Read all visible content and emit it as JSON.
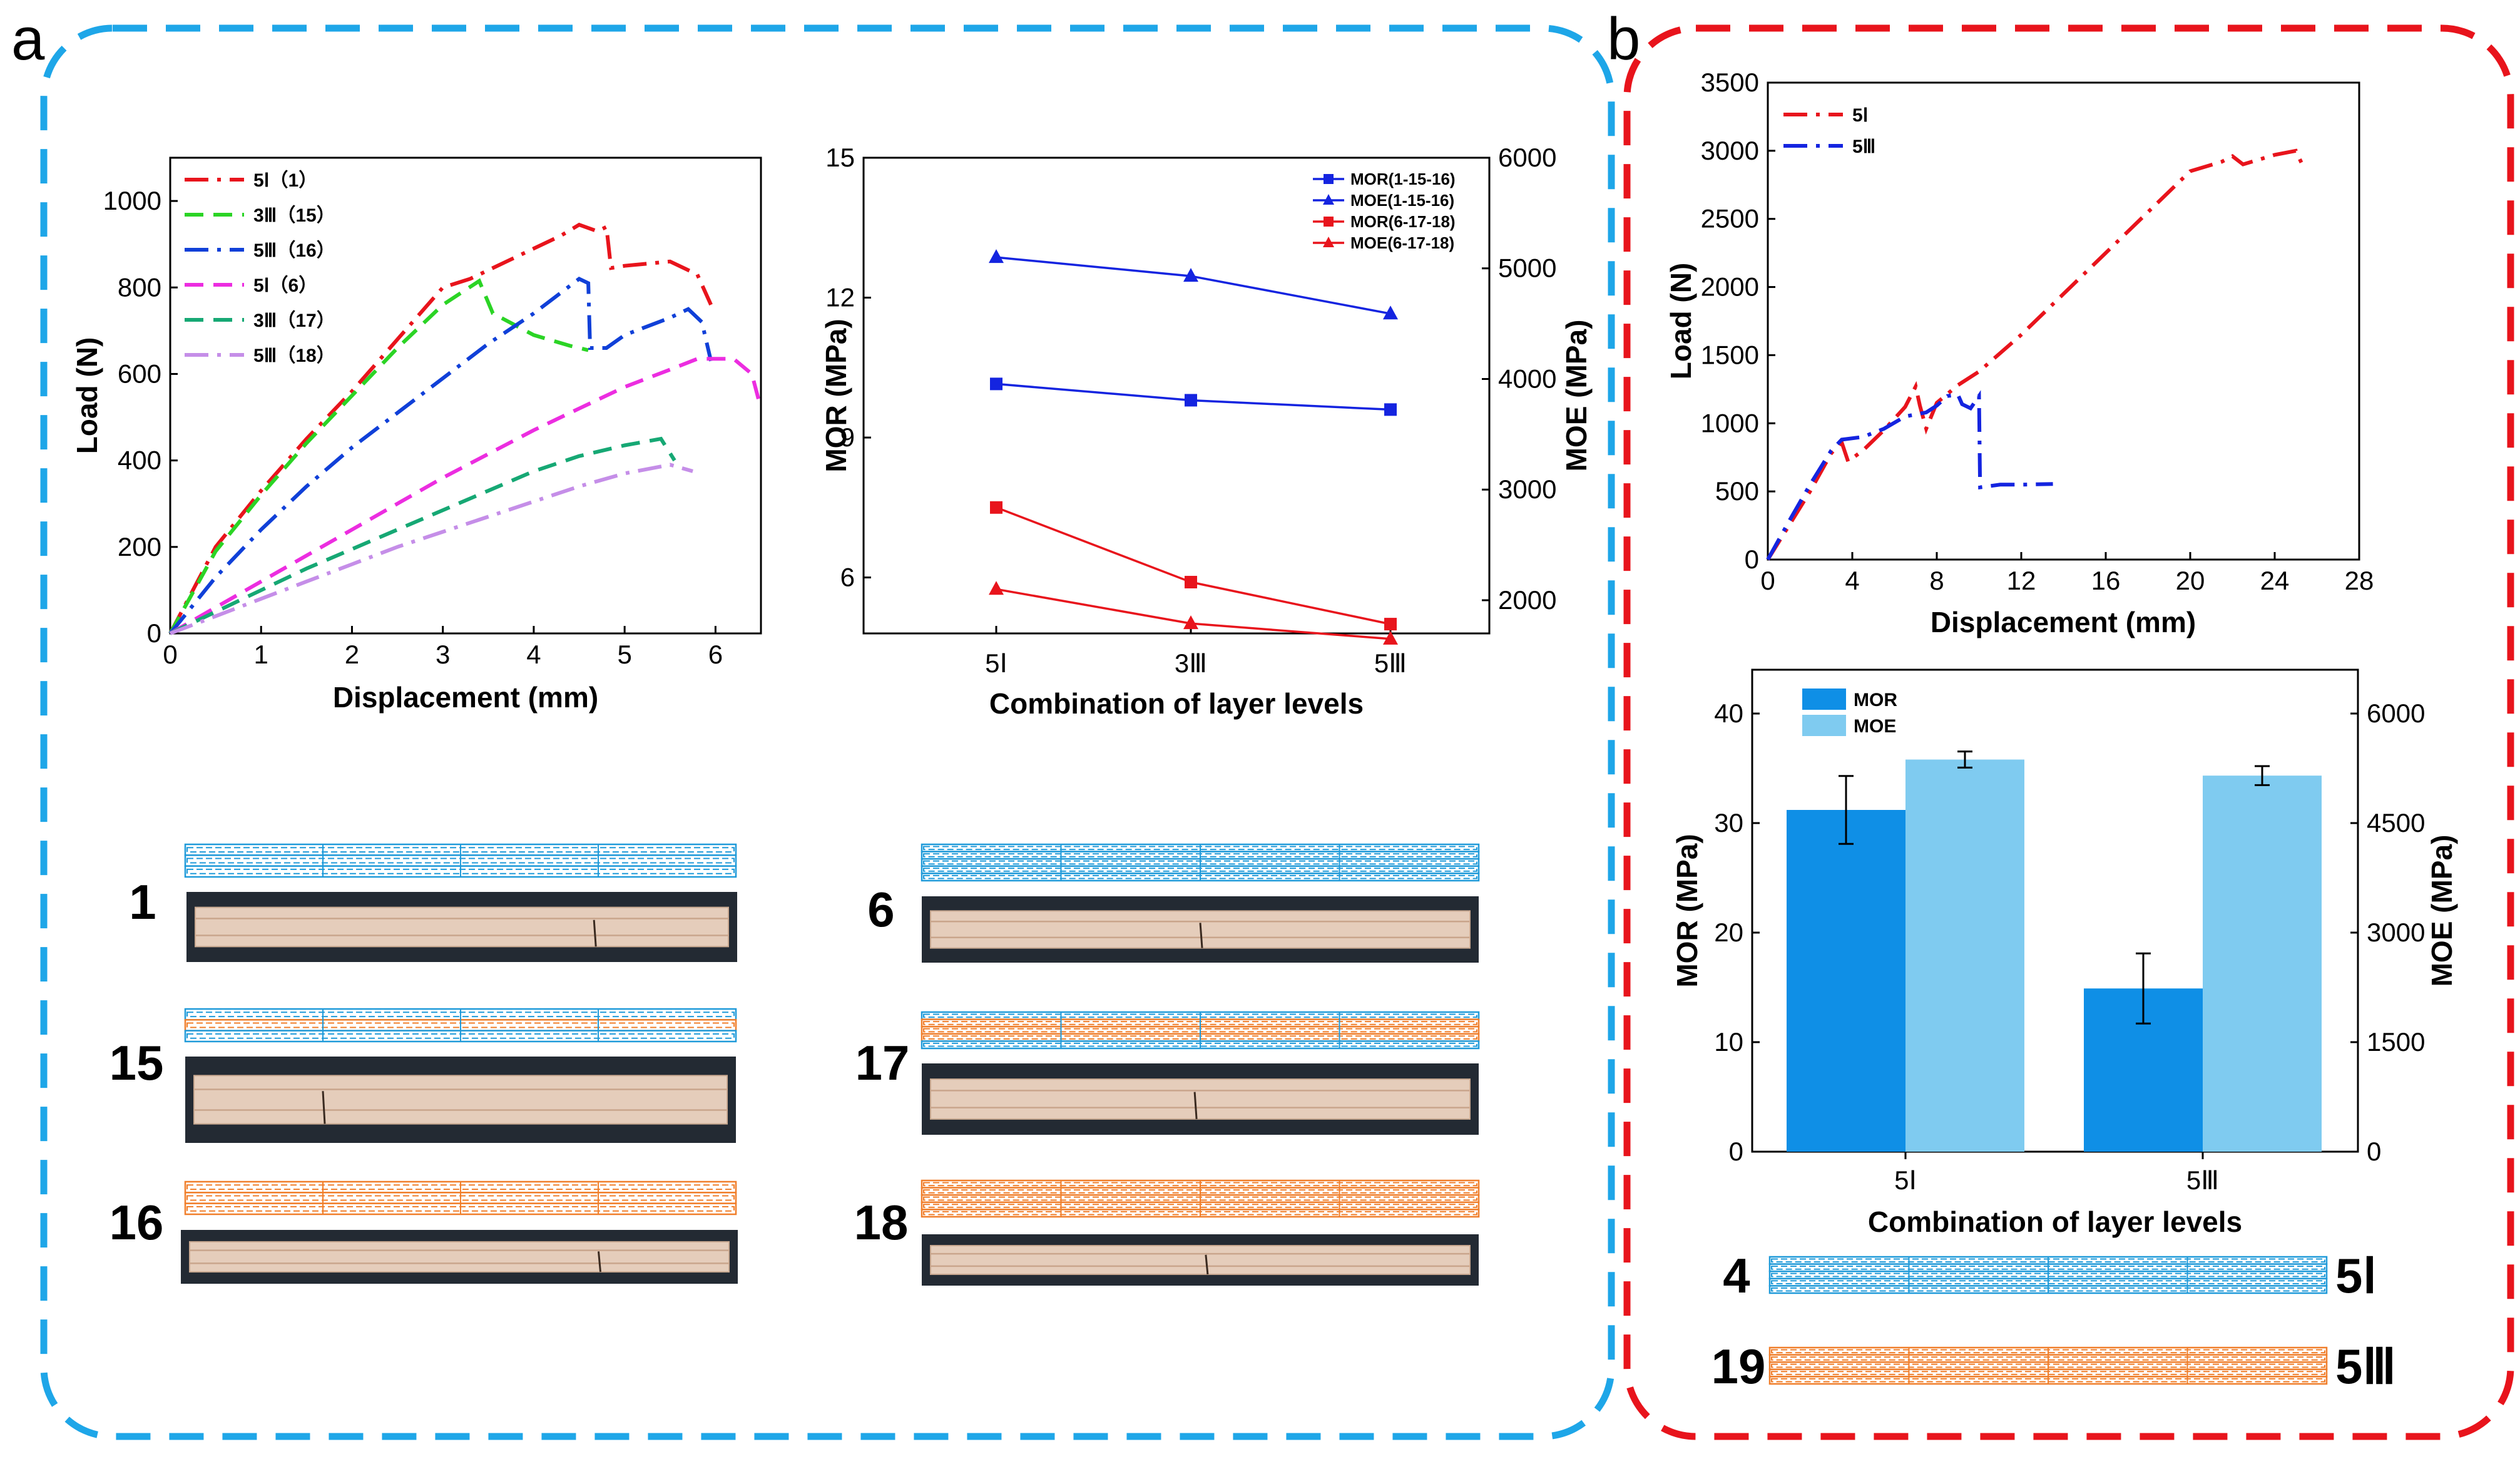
{
  "panel_a": {
    "label": "a",
    "specimens": [
      {
        "num": "1",
        "color": "#1f9ad9"
      },
      {
        "num": "15",
        "color": "mixed"
      },
      {
        "num": "16",
        "color": "#f07e2a"
      },
      {
        "num": "6",
        "color": "#1f9ad9"
      },
      {
        "num": "17",
        "color": "mixed"
      },
      {
        "num": "18",
        "color": "#f07e2a"
      }
    ]
  },
  "panel_b": {
    "label": "b",
    "specimens": [
      {
        "num": "4",
        "label": "5Ⅰ",
        "color": "#1f9ad9"
      },
      {
        "num": "19",
        "label": "5Ⅲ",
        "color": "#f07e2a"
      }
    ]
  },
  "colors": {
    "border_a": "#1ea6e8",
    "border_b": "#e8141c",
    "blue_layer": "#1f9ad9",
    "orange_layer": "#f07e2a"
  },
  "chart_data": [
    {
      "id": "load-a",
      "type": "line",
      "xlabel": "Displacement (mm)",
      "ylabel": "Load (N)",
      "xlim": [
        0,
        6.5
      ],
      "ylim": [
        0,
        1100
      ],
      "xticks": [
        0,
        1,
        2,
        3,
        4,
        5,
        6
      ],
      "yticks": [
        0,
        200,
        400,
        600,
        800,
        1000
      ],
      "series": [
        {
          "name": "5Ⅰ（1）",
          "color": "#e8141c",
          "dash": "dashdot",
          "points": [
            [
              0,
              0
            ],
            [
              0.5,
              200
            ],
            [
              1,
              330
            ],
            [
              1.5,
              450
            ],
            [
              2,
              560
            ],
            [
              2.5,
              680
            ],
            [
              3,
              800
            ],
            [
              3.3,
              820
            ],
            [
              3.7,
              860
            ],
            [
              4,
              890
            ],
            [
              4.3,
              920
            ],
            [
              4.5,
              945
            ],
            [
              4.7,
              930
            ],
            [
              4.8,
              940
            ],
            [
              4.85,
              845
            ],
            [
              5,
              850
            ],
            [
              5.5,
              860
            ],
            [
              5.8,
              830
            ],
            [
              5.95,
              760
            ]
          ]
        },
        {
          "name": "3Ⅲ（15）",
          "color": "#2bd425",
          "dash": "dash",
          "points": [
            [
              0,
              0
            ],
            [
              0.5,
              190
            ],
            [
              1,
              320
            ],
            [
              1.5,
              440
            ],
            [
              2,
              550
            ],
            [
              2.5,
              660
            ],
            [
              3,
              760
            ],
            [
              3.4,
              815
            ],
            [
              3.55,
              740
            ],
            [
              4,
              690
            ],
            [
              4.4,
              665
            ],
            [
              4.6,
              655
            ]
          ]
        },
        {
          "name": "5Ⅲ（16）",
          "color": "#1040d8",
          "dash": "dashdot",
          "points": [
            [
              0,
              0
            ],
            [
              0.5,
              130
            ],
            [
              1,
              240
            ],
            [
              1.5,
              340
            ],
            [
              2,
              430
            ],
            [
              2.5,
              510
            ],
            [
              3,
              590
            ],
            [
              3.5,
              670
            ],
            [
              4,
              740
            ],
            [
              4.5,
              820
            ],
            [
              4.6,
              810
            ],
            [
              4.62,
              660
            ],
            [
              4.8,
              660
            ],
            [
              5,
              690
            ],
            [
              5.5,
              730
            ],
            [
              5.7,
              750
            ],
            [
              5.85,
              720
            ],
            [
              5.95,
              630
            ]
          ]
        },
        {
          "name": "5Ⅰ（6）",
          "color": "#ec2de0",
          "dash": "dash",
          "points": [
            [
              0,
              0
            ],
            [
              0.5,
              60
            ],
            [
              1,
              120
            ],
            [
              1.5,
              180
            ],
            [
              2,
              240
            ],
            [
              2.5,
              300
            ],
            [
              3,
              360
            ],
            [
              3.5,
              415
            ],
            [
              4,
              470
            ],
            [
              4.5,
              520
            ],
            [
              5,
              570
            ],
            [
              5.5,
              610
            ],
            [
              5.8,
              635
            ],
            [
              6.2,
              635
            ],
            [
              6.4,
              600
            ],
            [
              6.5,
              520
            ]
          ]
        },
        {
          "name": "3Ⅲ（17）",
          "color": "#16a874",
          "dash": "dash",
          "points": [
            [
              0,
              0
            ],
            [
              0.5,
              50
            ],
            [
              1,
              100
            ],
            [
              1.5,
              150
            ],
            [
              2,
              195
            ],
            [
              2.5,
              240
            ],
            [
              3,
              285
            ],
            [
              3.5,
              330
            ],
            [
              4,
              375
            ],
            [
              4.5,
              410
            ],
            [
              5,
              435
            ],
            [
              5.4,
              450
            ],
            [
              5.55,
              400
            ]
          ]
        },
        {
          "name": "5Ⅲ（18）",
          "color": "#c58ee8",
          "dash": "dashdot",
          "points": [
            [
              0,
              0
            ],
            [
              0.5,
              40
            ],
            [
              1,
              80
            ],
            [
              1.5,
              120
            ],
            [
              2,
              160
            ],
            [
              2.5,
              200
            ],
            [
              3,
              235
            ],
            [
              3.5,
              270
            ],
            [
              4,
              305
            ],
            [
              4.5,
              340
            ],
            [
              5,
              370
            ],
            [
              5.5,
              390
            ],
            [
              5.75,
              375
            ]
          ]
        }
      ]
    },
    {
      "id": "mor-moe-a",
      "type": "line",
      "xlabel": "Combination of layer levels",
      "ylabel": "MOR (MPa)",
      "y2label": "MOE (MPa)",
      "categories": [
        "5Ⅰ",
        "3Ⅲ",
        "5Ⅲ"
      ],
      "ylim": [
        4.8,
        15
      ],
      "yticks": [
        6,
        9,
        12,
        15
      ],
      "y2lim": [
        1700,
        6000
      ],
      "y2ticks": [
        2000,
        3000,
        4000,
        5000,
        6000
      ],
      "series": [
        {
          "name": "MOR(1-15-16)",
          "color": "#1424e0",
          "marker": "square",
          "axis": "left",
          "values": [
            10.15,
            9.8,
            9.6
          ]
        },
        {
          "name": "MOE(1-15-16)",
          "color": "#1424e0",
          "marker": "triangle",
          "axis": "right",
          "values": [
            5100,
            4930,
            4590
          ]
        },
        {
          "name": "MOR(6-17-18)",
          "color": "#e8141c",
          "marker": "square",
          "axis": "left",
          "values": [
            7.5,
            5.9,
            5.0
          ]
        },
        {
          "name": "MOE(6-17-18)",
          "color": "#e8141c",
          "marker": "triangle",
          "axis": "right",
          "values": [
            2100,
            1790,
            1650
          ]
        }
      ]
    },
    {
      "id": "load-b",
      "type": "line",
      "xlabel": "Displacement (mm)",
      "ylabel": "Load (N)",
      "xlim": [
        0,
        28
      ],
      "ylim": [
        0,
        3500
      ],
      "xticks": [
        0,
        4,
        8,
        12,
        16,
        20,
        24,
        28
      ],
      "yticks": [
        0,
        500,
        1000,
        1500,
        2000,
        2500,
        3000,
        3500
      ],
      "series": [
        {
          "name": "5Ⅰ",
          "color": "#e8141c",
          "dash": "dashdot",
          "points": [
            [
              0,
              0
            ],
            [
              1,
              250
            ],
            [
              2,
              500
            ],
            [
              3,
              780
            ],
            [
              3.5,
              860
            ],
            [
              3.8,
              720
            ],
            [
              4.5,
              800
            ],
            [
              5.5,
              950
            ],
            [
              6.5,
              1120
            ],
            [
              7,
              1270
            ],
            [
              7.2,
              1130
            ],
            [
              7.5,
              960
            ],
            [
              8,
              1150
            ],
            [
              9,
              1280
            ],
            [
              10,
              1380
            ],
            [
              12,
              1650
            ],
            [
              14,
              1950
            ],
            [
              16,
              2250
            ],
            [
              18,
              2550
            ],
            [
              20,
              2850
            ],
            [
              21.5,
              2920
            ],
            [
              22,
              2960
            ],
            [
              22.5,
              2900
            ],
            [
              24,
              2970
            ],
            [
              25,
              3000
            ],
            [
              25.3,
              2900
            ]
          ]
        },
        {
          "name": "5Ⅲ",
          "color": "#1424e0",
          "dash": "dashdot",
          "points": [
            [
              0,
              0
            ],
            [
              1,
              280
            ],
            [
              2,
              550
            ],
            [
              3,
              800
            ],
            [
              3.5,
              880
            ],
            [
              4.5,
              900
            ],
            [
              5.5,
              960
            ],
            [
              6.5,
              1050
            ],
            [
              7.5,
              1080
            ],
            [
              8,
              1130
            ],
            [
              8.5,
              1200
            ],
            [
              9,
              1210
            ],
            [
              9.2,
              1140
            ],
            [
              9.6,
              1110
            ],
            [
              10,
              1200
            ],
            [
              10.05,
              530
            ],
            [
              11,
              550
            ],
            [
              12,
              550
            ],
            [
              13.5,
              555
            ]
          ]
        }
      ]
    },
    {
      "id": "bar-b",
      "type": "bar",
      "xlabel": "Combination of layer levels",
      "ylabel": "MOR (MPa)",
      "y2label": "MOE (MPa)",
      "categories": [
        "5Ⅰ",
        "5Ⅲ"
      ],
      "ylim": [
        0,
        44
      ],
      "yticks": [
        0,
        10,
        20,
        30,
        40
      ],
      "y2lim": [
        0,
        6600
      ],
      "y2ticks": [
        0,
        1500,
        3000,
        4500,
        6000
      ],
      "series": [
        {
          "name": "MOR",
          "color": "#0f8fe6",
          "axis": "left",
          "values": [
            31.2,
            14.9
          ],
          "errors": [
            3.1,
            3.2
          ]
        },
        {
          "name": "MOE",
          "color": "#7fcbf0",
          "axis": "right",
          "values": [
            5370,
            5150
          ],
          "errors": [
            110,
            130
          ]
        }
      ]
    }
  ]
}
